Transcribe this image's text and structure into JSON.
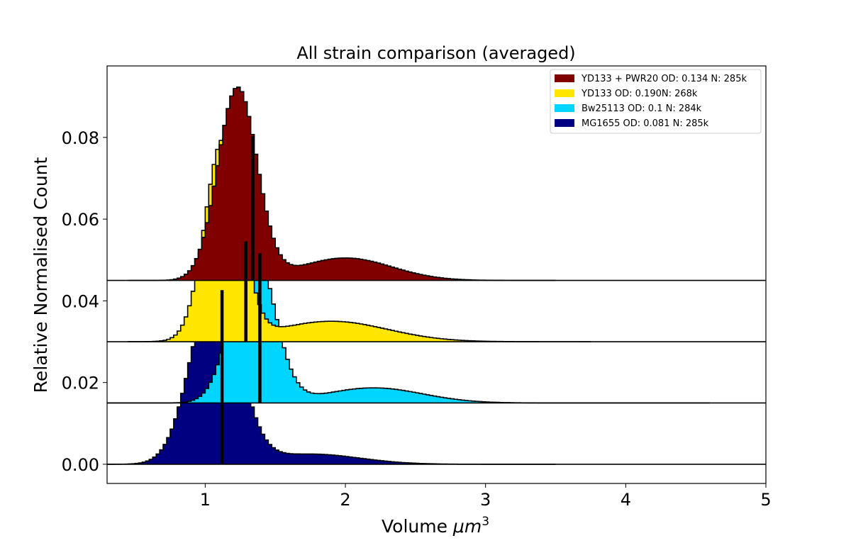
{
  "chart_data": {
    "type": "histogram-ridgeline",
    "title": "All strain comparison (averaged)",
    "xlabel": "Volume",
    "xlabel_unit": "μm",
    "xlabel_unit_exp": "3",
    "ylabel": "Relative Normalised Count",
    "xlim": [
      0.3,
      5.0
    ],
    "ylim": [
      -0.0047,
      0.0975
    ],
    "xticks": [
      1,
      2,
      3,
      4,
      5
    ],
    "xtick_labels": [
      "1",
      "2",
      "3",
      "4",
      "5"
    ],
    "yticks": [
      0.0,
      0.02,
      0.04,
      0.06,
      0.08
    ],
    "ytick_labels": [
      "0.00",
      "0.02",
      "0.04",
      "0.06",
      "0.08"
    ],
    "grid": false,
    "legend_position": "top-right",
    "bin_width": 0.025,
    "series": [
      {
        "name": "YD133 + PWR20 OD: 0.134 N: 285k",
        "color": "#800000",
        "offset": 0.045,
        "mean_line_x": 1.34,
        "peaks": [
          {
            "center": 1.23,
            "sigma": 0.14,
            "height": 0.047
          },
          {
            "center": 2.0,
            "sigma": 0.33,
            "height": 0.0055
          }
        ],
        "x_range": [
          0.45,
          3.5
        ]
      },
      {
        "name": "YD133 OD: 0.190N: 268k",
        "color": "#FFE600",
        "offset": 0.03,
        "mean_line_x": 1.29,
        "peaks": [
          {
            "center": 1.13,
            "sigma": 0.13,
            "height": 0.049
          },
          {
            "center": 1.9,
            "sigma": 0.4,
            "height": 0.005
          }
        ],
        "x_range": [
          0.45,
          3.75
        ]
      },
      {
        "name": "Bw25113 OD: 0.1 N: 284k",
        "color": "#00D5FF",
        "offset": 0.015,
        "mean_line_x": 1.39,
        "peaks": [
          {
            "center": 1.34,
            "sigma": 0.15,
            "height": 0.0385
          },
          {
            "center": 2.2,
            "sigma": 0.35,
            "height": 0.0037
          }
        ],
        "x_range": [
          0.3,
          4.6
        ]
      },
      {
        "name": "MG1655 OD: 0.081 N: 285k",
        "color": "#000080",
        "offset": 0.0,
        "mean_line_x": 1.12,
        "peaks": [
          {
            "center": 1.07,
            "sigma": 0.17,
            "height": 0.044
          },
          {
            "center": 1.75,
            "sigma": 0.35,
            "height": 0.0025
          }
        ],
        "x_range": [
          0.3,
          3.5
        ]
      }
    ]
  }
}
